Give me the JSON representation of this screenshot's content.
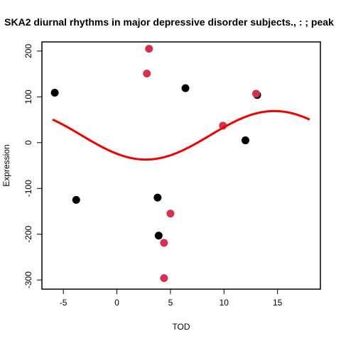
{
  "chart_data": {
    "type": "scatter",
    "title": "SKA2 diurnal rhythms in major depressive disorder subjects., : ; peak",
    "xlabel": "TOD",
    "ylabel": "Expression",
    "xlim": [
      -7,
      19
    ],
    "ylim": [
      -320,
      220
    ],
    "x_ticks": [
      -5,
      0,
      5,
      10,
      15
    ],
    "y_ticks": [
      -300,
      -200,
      -100,
      0,
      100,
      200
    ],
    "grid": false,
    "series": [
      {
        "color": "#000000",
        "points": [
          {
            "x": -5.8,
            "y": 109
          },
          {
            "x": -3.8,
            "y": -125
          },
          {
            "x": 3.8,
            "y": -120
          },
          {
            "x": 3.9,
            "y": -203
          },
          {
            "x": 6.4,
            "y": 119
          },
          {
            "x": 12.0,
            "y": 5
          },
          {
            "x": 13.1,
            "y": 104
          }
        ]
      },
      {
        "color": "#D6304E",
        "points": [
          {
            "x": 2.8,
            "y": 151
          },
          {
            "x": 3.0,
            "y": 205
          },
          {
            "x": 4.4,
            "y": -219
          },
          {
            "x": 4.4,
            "y": -296
          },
          {
            "x": 5.0,
            "y": -155
          },
          {
            "x": 9.9,
            "y": 37
          },
          {
            "x": 13.0,
            "y": 107
          }
        ]
      }
    ],
    "fit_curve": {
      "color": "#EE0000",
      "mesor": 16,
      "amplitude": 53,
      "period": 24,
      "peak": 14.7,
      "x_range": [
        -6,
        18
      ]
    }
  }
}
